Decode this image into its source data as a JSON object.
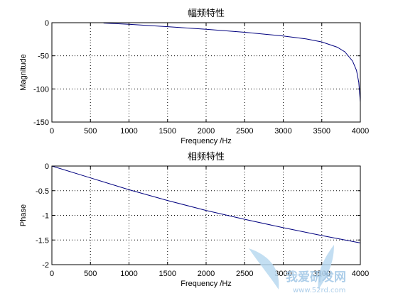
{
  "chart_data": [
    {
      "type": "line",
      "title": "幅频特性",
      "xlabel": "Frequency /Hz",
      "ylabel": "Magnitude",
      "xlim": [
        0,
        4000
      ],
      "ylim": [
        -150,
        0
      ],
      "xticks": [
        0,
        500,
        1000,
        1500,
        2000,
        2500,
        3000,
        3500,
        4000
      ],
      "yticks": [
        0,
        -50,
        -100,
        -150
      ],
      "xtick_labels": [
        "0",
        "500",
        "1000",
        "1500",
        "2000",
        "2500",
        "3000",
        "3500",
        "4000"
      ],
      "ytick_labels": [
        "0",
        "-50",
        "-100",
        "-150"
      ],
      "grid": true,
      "line_color": "#00007f",
      "series": [
        {
          "x": [
            670,
            1000,
            1500,
            2000,
            2500,
            3000,
            3300,
            3500,
            3700,
            3800,
            3900,
            3950,
            3980,
            4000
          ],
          "values": [
            -0.5,
            -2.5,
            -6,
            -10,
            -14.5,
            -20,
            -24.5,
            -29,
            -37,
            -44,
            -58,
            -72,
            -90,
            -120
          ]
        }
      ]
    },
    {
      "type": "line",
      "title": "相频特性",
      "xlabel": "Frequency /Hz",
      "ylabel": "Phase",
      "xlim": [
        0,
        4000
      ],
      "ylim": [
        -2,
        0
      ],
      "xticks": [
        0,
        500,
        1000,
        1500,
        2000,
        2500,
        3000,
        3500,
        4000
      ],
      "yticks": [
        0,
        -0.5,
        -1,
        -1.5,
        -2
      ],
      "xtick_labels": [
        "0",
        "500",
        "1000",
        "1500",
        "2000",
        "2500",
        "3000",
        "3500",
        "4000"
      ],
      "ytick_labels": [
        "0",
        "-0.5",
        "-1",
        "-1.5",
        "-2"
      ],
      "grid": true,
      "line_color": "#00007f",
      "series": [
        {
          "x": [
            0,
            500,
            1000,
            1500,
            2000,
            2500,
            3000,
            3500,
            4000
          ],
          "values": [
            0,
            -0.24,
            -0.48,
            -0.7,
            -0.9,
            -1.08,
            -1.25,
            -1.41,
            -1.56
          ]
        }
      ]
    }
  ],
  "watermark": {
    "text": "我爱研发网",
    "url": "www.52rd.com"
  }
}
